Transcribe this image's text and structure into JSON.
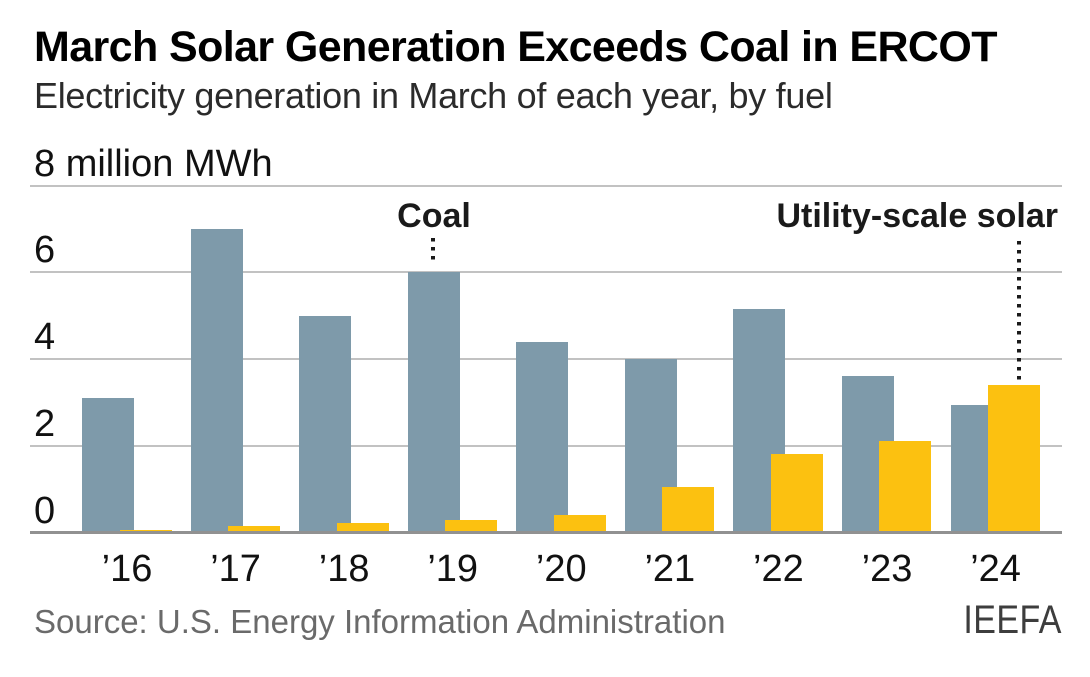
{
  "header": {
    "title": "March Solar Generation Exceeds Coal in ERCOT",
    "subtitle": "Electricity generation in March of each year, by fuel"
  },
  "footer": {
    "source": "Source: U.S. Energy Information Administration",
    "logo": "IEEFA"
  },
  "chart_data": {
    "type": "bar",
    "title": "March Solar Generation Exceeds Coal in ERCOT",
    "subtitle": "Electricity generation in March of each year, by fuel",
    "unit_label": "8 million MWh",
    "xlabel": "",
    "ylabel": "million MWh",
    "ylim": [
      0,
      8
    ],
    "grid": "horizontal",
    "legend_position": "inline-annotations",
    "categories": [
      "’16",
      "’17",
      "’18",
      "’19",
      "’20",
      "’21",
      "’22",
      "’23",
      "’24"
    ],
    "series": [
      {
        "name": "Coal",
        "color": "#7e9aaa",
        "values": [
          3.1,
          7.0,
          5.0,
          6.0,
          4.4,
          4.0,
          5.15,
          3.6,
          2.95
        ]
      },
      {
        "name": "Utility-scale solar",
        "color": "#fcc110",
        "values": [
          0.06,
          0.15,
          0.23,
          0.28,
          0.4,
          1.05,
          1.8,
          2.1,
          3.4
        ]
      }
    ],
    "y_ticks": [
      {
        "value": 8,
        "label": "8 million MWh"
      },
      {
        "value": 6,
        "label": "6"
      },
      {
        "value": 4,
        "label": "4"
      },
      {
        "value": 2,
        "label": "2"
      },
      {
        "value": 0,
        "label": "0"
      }
    ],
    "annotations": [
      {
        "text": "Coal",
        "series": "Coal",
        "target_year": "’19"
      },
      {
        "text": "Utility-scale solar",
        "series": "Utility-scale solar",
        "target_year": "’24"
      }
    ],
    "axis_colors": {
      "gridline": "#c2c2c2",
      "baseline": "#919191"
    }
  }
}
